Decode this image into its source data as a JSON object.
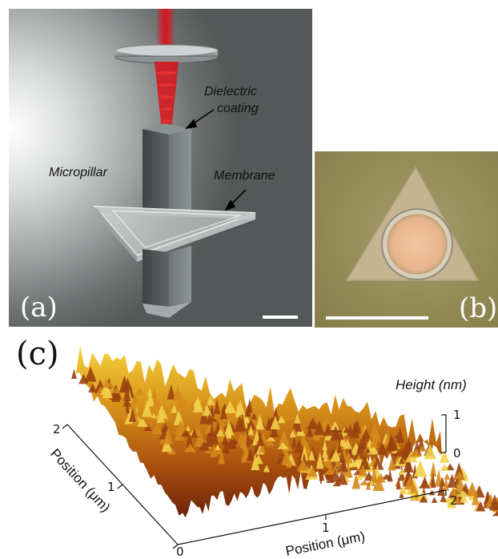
{
  "panel_a": {
    "label": "(a)",
    "annotations": {
      "dielectric_line1": "Dielectric",
      "dielectric_line2": "coating",
      "micropillar": "Micropillar",
      "membrane": "Membrane"
    },
    "colors": {
      "laser": "#e0101a"
    }
  },
  "panel_b": {
    "label": "(b)"
  },
  "panel_c": {
    "label": "(c)",
    "height_axis": {
      "title": "Height (nm)",
      "ticks": [
        "1",
        "0"
      ]
    },
    "y_axis": {
      "title": "Position (μm)",
      "ticks": [
        "2",
        "1",
        "0"
      ]
    },
    "x_axis": {
      "title": "Position (μm)",
      "ticks": [
        "1",
        "2"
      ]
    }
  }
}
